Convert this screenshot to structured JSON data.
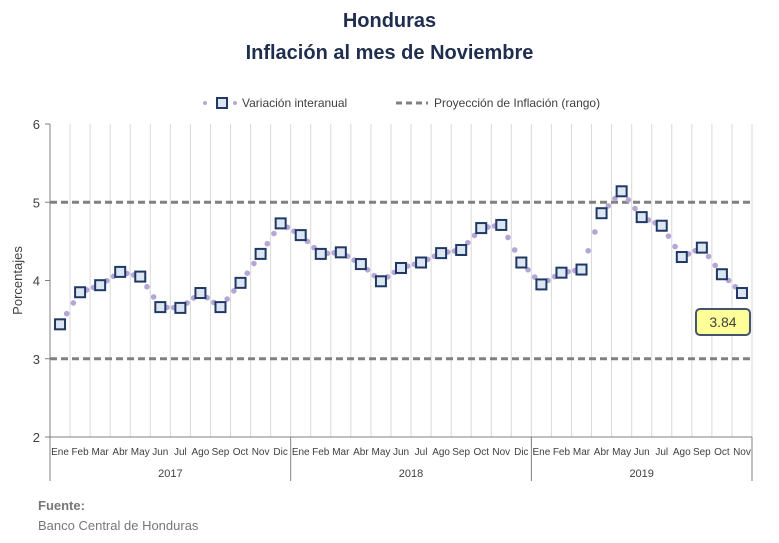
{
  "title": "Honduras",
  "subtitle": "Inflación al mes de Noviembre",
  "source_label": "Fuente:",
  "source_text": "Banco Central de Honduras",
  "colors": {
    "marker_edge": "#1f3864",
    "marker_fill": "#dce6f2",
    "dot": "#b4a7d6",
    "projection": "#808080",
    "callout_fill": "#ffff99",
    "callout_border": "#44546a"
  },
  "chart_data": {
    "type": "line",
    "ylabel": "Porcentajes",
    "ylim": [
      2,
      6
    ],
    "yticks": [
      2,
      3,
      4,
      5,
      6
    ],
    "legend": [
      "Variación interanual",
      "Proyección de Inflación (rango)"
    ],
    "legend_position": "top",
    "years": [
      "2017",
      "2018",
      "2019"
    ],
    "months": [
      [
        "Ene",
        "Feb",
        "Mar",
        "Abr",
        "May",
        "Jun",
        "Jul",
        "Ago",
        "Sep",
        "Oct",
        "Nov",
        "Dic"
      ],
      [
        "Ene",
        "Feb",
        "Mar",
        "Abr",
        "May",
        "Jun",
        "Jul",
        "Ago",
        "Sep",
        "Oct",
        "Nov",
        "Dic"
      ],
      [
        "Ene",
        "Feb",
        "Mar",
        "Abr",
        "May",
        "Jun",
        "Jul",
        "Ago",
        "Sep",
        "Oct",
        "Nov"
      ]
    ],
    "series": [
      {
        "name": "Variación interanual",
        "values": [
          3.44,
          3.85,
          3.94,
          4.11,
          4.05,
          3.66,
          3.65,
          3.84,
          3.66,
          3.97,
          4.34,
          4.73,
          4.58,
          4.34,
          4.36,
          4.21,
          3.99,
          4.16,
          4.23,
          4.35,
          4.39,
          4.67,
          4.71,
          4.23,
          3.95,
          4.1,
          4.14,
          4.86,
          5.14,
          4.81,
          4.7,
          4.3,
          4.42,
          4.08,
          3.84
        ]
      },
      {
        "name": "Proyección de Inflación (rango)",
        "values": [
          3.0,
          5.0
        ]
      }
    ],
    "callout": "3.84",
    "grid": true
  }
}
